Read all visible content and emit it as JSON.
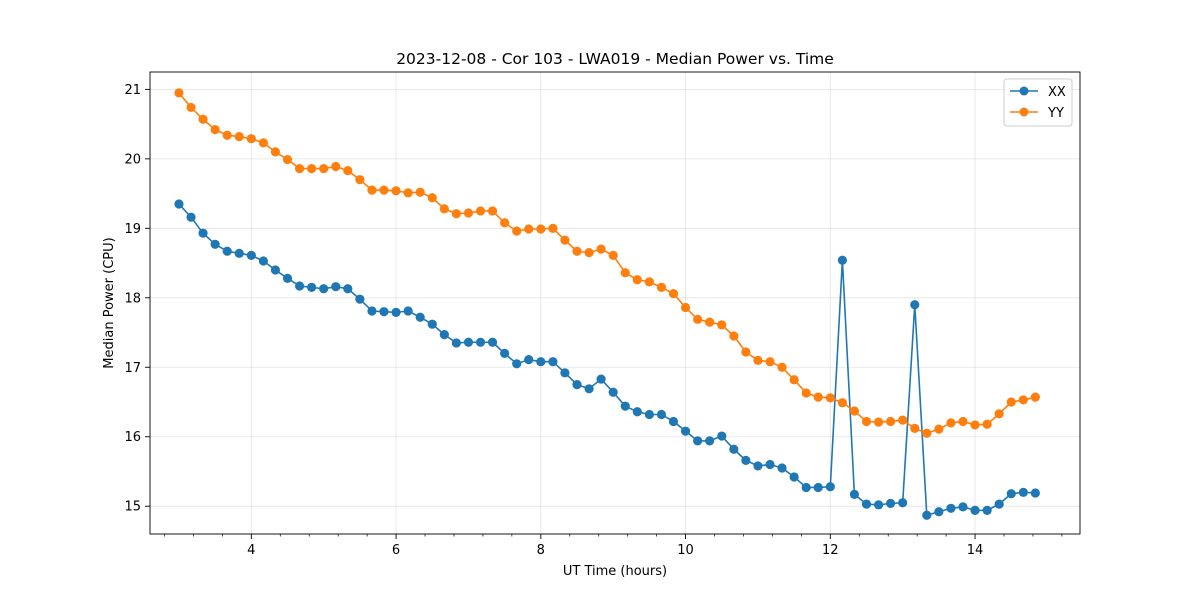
{
  "chart_data": {
    "type": "line",
    "title": "2023-12-08 - Cor 103 - LWA019 - Median Power vs. Time",
    "xlabel": "UT Time (hours)",
    "ylabel": "Median Power (CPU)",
    "xlim": [
      2.6,
      15.45
    ],
    "ylim": [
      14.6,
      21.25
    ],
    "xticks": [
      4,
      6,
      8,
      10,
      12,
      14
    ],
    "xtick_labels": [
      "4",
      "6",
      "8",
      "10",
      "12",
      "14"
    ],
    "yticks": [
      15,
      16,
      17,
      18,
      19,
      20,
      21
    ],
    "ytick_labels": [
      "15",
      "16",
      "17",
      "18",
      "19",
      "20",
      "21"
    ],
    "grid": true,
    "legend_position": "top-right",
    "x": [
      3.0,
      3.167,
      3.333,
      3.5,
      3.667,
      3.833,
      4.0,
      4.167,
      4.333,
      4.5,
      4.667,
      4.833,
      5.0,
      5.167,
      5.333,
      5.5,
      5.667,
      5.833,
      6.0,
      6.167,
      6.333,
      6.5,
      6.667,
      6.833,
      7.0,
      7.167,
      7.333,
      7.5,
      7.667,
      7.833,
      8.0,
      8.167,
      8.333,
      8.5,
      8.667,
      8.833,
      9.0,
      9.167,
      9.333,
      9.5,
      9.667,
      9.833,
      10.0,
      10.167,
      10.333,
      10.5,
      10.667,
      10.833,
      11.0,
      11.167,
      11.333,
      11.5,
      11.667,
      11.833,
      12.0,
      12.167,
      12.333,
      12.5,
      12.667,
      12.833,
      13.0,
      13.167,
      13.333,
      13.5,
      13.667,
      13.833,
      14.0,
      14.167,
      14.333,
      14.5,
      14.667,
      14.833
    ],
    "series": [
      {
        "name": "XX",
        "color": "#1f77b4",
        "values": [
          19.35,
          19.16,
          18.93,
          18.77,
          18.67,
          18.64,
          18.61,
          18.53,
          18.4,
          18.28,
          18.17,
          18.15,
          18.13,
          18.16,
          18.13,
          17.98,
          17.81,
          17.8,
          17.79,
          17.81,
          17.72,
          17.62,
          17.47,
          17.35,
          17.36,
          17.36,
          17.36,
          17.2,
          17.05,
          17.11,
          17.08,
          17.08,
          16.92,
          16.75,
          16.69,
          16.83,
          16.64,
          16.44,
          16.36,
          16.32,
          16.32,
          16.22,
          16.08,
          15.94,
          15.94,
          16.01,
          15.82,
          15.66,
          15.58,
          15.6,
          15.55,
          15.42,
          15.27,
          15.27,
          15.28,
          18.54,
          15.17,
          15.03,
          15.02,
          15.04,
          15.05,
          17.9,
          14.87,
          14.92,
          14.97,
          14.99,
          14.94,
          14.94,
          15.03,
          15.18,
          15.2,
          15.19
        ]
      },
      {
        "name": "YY",
        "color": "#ff7f0e",
        "values": [
          20.95,
          20.74,
          20.57,
          20.42,
          20.34,
          20.32,
          20.29,
          20.23,
          20.1,
          19.99,
          19.86,
          19.86,
          19.86,
          19.89,
          19.83,
          19.7,
          19.55,
          19.55,
          19.54,
          19.51,
          19.52,
          19.44,
          19.28,
          19.21,
          19.22,
          19.25,
          19.25,
          19.08,
          18.96,
          18.99,
          18.99,
          19.0,
          18.83,
          18.67,
          18.65,
          18.7,
          18.61,
          18.36,
          18.26,
          18.23,
          18.15,
          18.06,
          17.86,
          17.69,
          17.65,
          17.61,
          17.45,
          17.22,
          17.1,
          17.08,
          17.0,
          16.82,
          16.63,
          16.57,
          16.56,
          16.49,
          16.37,
          16.22,
          16.21,
          16.22,
          16.24,
          16.12,
          16.05,
          16.11,
          16.2,
          16.22,
          16.17,
          16.18,
          16.33,
          16.5,
          16.53,
          16.57
        ]
      }
    ]
  }
}
